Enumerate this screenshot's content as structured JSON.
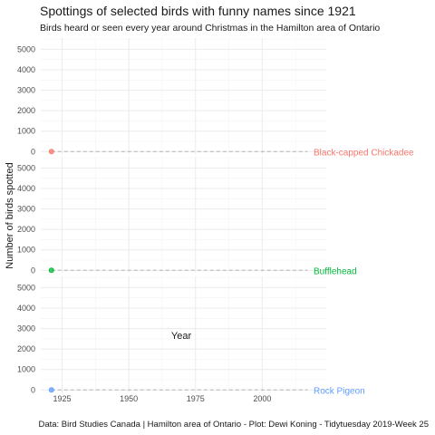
{
  "chart_data": {
    "type": "scatter",
    "title": "Spottings of selected birds with funny names since 1921",
    "subtitle": "Birds heard or seen every year around Christmas in the Hamilton area of Ontario",
    "caption": "Data: Bird Studies Canada | Hamilton area of Ontario - Plot: Dewi Koning - Tidytuesday 2019-Week 25",
    "xlabel": "Year",
    "ylabel": "Number of birds spotted",
    "xlim": [
      1917,
      2024
    ],
    "ylim": [
      -120,
      5550
    ],
    "x_ticks": [
      1925,
      1950,
      1975,
      2000
    ],
    "y_ticks": [
      0,
      1000,
      2000,
      3000,
      4000,
      5000
    ],
    "grid": true,
    "legend": "none",
    "facets": "stacked vertically, one per series, series label at right end of trend",
    "series": [
      {
        "name": "Black-capped Chickadee",
        "color": "#F8766D",
        "x": [
          1921
        ],
        "y": [
          0
        ],
        "trend_x": [
          1921,
          2017
        ],
        "trend_y": [
          0,
          0
        ]
      },
      {
        "name": "Bufflehead",
        "color": "#00BA38",
        "x": [
          1921
        ],
        "y": [
          0
        ],
        "trend_x": [
          1921,
          2017
        ],
        "trend_y": [
          0,
          0
        ]
      },
      {
        "name": "Rock Pigeon",
        "color": "#619CFF",
        "x": [
          1921
        ],
        "y": [
          0
        ],
        "trend_x": [
          1921,
          2017
        ],
        "trend_y": [
          0,
          0
        ]
      }
    ]
  }
}
